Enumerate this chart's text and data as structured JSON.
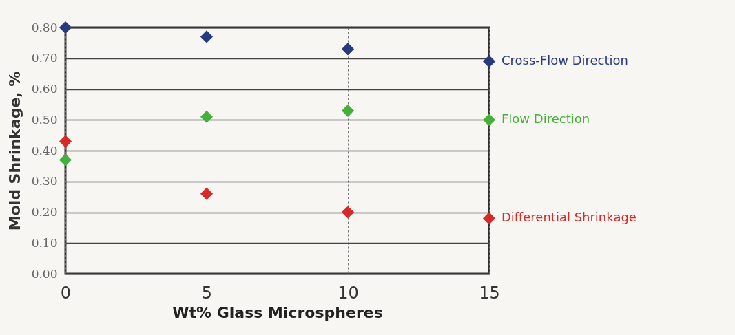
{
  "chart_data": {
    "type": "scatter",
    "xlabel": "Wt%  Glass Microspheres",
    "ylabel": "Mold Shrinkage, %",
    "x": [
      0,
      5,
      10,
      15
    ],
    "series": [
      {
        "name": "Cross-Flow Direction",
        "color": "#283a7e",
        "values": [
          0.8,
          0.77,
          0.73,
          0.69
        ]
      },
      {
        "name": "Flow Direction",
        "color": "#44b03a",
        "values": [
          0.37,
          0.51,
          0.53,
          0.5
        ]
      },
      {
        "name": "Differential Shrinkage",
        "color": "#d42a2a",
        "values": [
          0.43,
          0.26,
          0.2,
          0.18
        ]
      }
    ],
    "xlim": [
      0,
      15
    ],
    "xticks": [
      0,
      5,
      10,
      15
    ],
    "ylim": [
      0,
      0.8
    ],
    "yticks": [
      {
        "value": 0,
        "label": "0.00"
      },
      {
        "value": 0.1,
        "label": "0.10"
      },
      {
        "value": 0.2,
        "label": "0.20"
      },
      {
        "value": 0.3,
        "label": "0.30"
      },
      {
        "value": 0.4,
        "label": "0.40"
      },
      {
        "value": 0.5,
        "label": "0.50"
      },
      {
        "value": 0.6,
        "label": "0.60"
      },
      {
        "value": 0.7,
        "label": "0.70"
      },
      {
        "value": 0.8,
        "label": "0.80"
      }
    ],
    "grid": true,
    "marker": "diamond",
    "legend": "right"
  }
}
